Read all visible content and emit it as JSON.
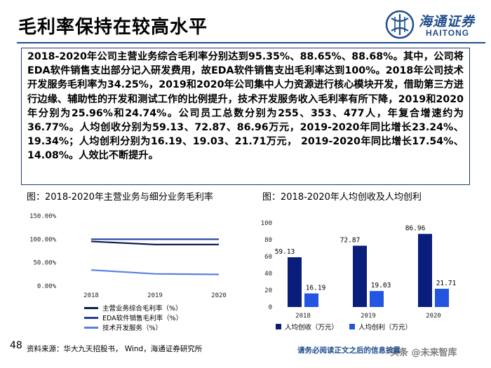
{
  "slide": {
    "title": "毛利率保持在较高水平",
    "page_number": "48"
  },
  "logo": {
    "cn_text": "海通证券",
    "en_text": "HAITONG",
    "accent_color": "#1f4e8c"
  },
  "summary": {
    "text": "2018-2020年公司主营业务综合毛利率分别达到95.35%、88.65%、88.68%。其中，公司将EDA软件销售支出部分记入研发费用，故EDA软件销售支出毛利率达到100%。2018年公司技术开发服务毛利率为34.25%，2019和2020年公司集中人力资源进行核心模块开发，借助第三方进行边缘、辅助性的开发和测试工作的比例提升，技术开发服务收入毛利率有所下降，2019和2020年分别为25.96%和24.74%。公司员工总数分别为255、353、477人，年复合增速约为36.77%。人均创收分别为59.13、72.87、86.96万元，2019-2020年同比增长23.24%、19.34%；人均创利分别为16.19、19.03、21.71万元， 2019-2020年同比增长17.54%、14.08%。人效比不断提升。"
  },
  "captions": {
    "left": "图：2018-2020年主营业务与细分业务毛利率",
    "right": "图：2018-2020年人均创收及人均创利"
  },
  "chart_data": [
    {
      "type": "line",
      "title": "",
      "x": [
        "2018",
        "2019",
        "2020"
      ],
      "y_ticks": [
        "150.00%",
        "100.00%",
        "50.00%",
        "0.00%"
      ],
      "ylim": [
        0,
        150
      ],
      "grid": false,
      "legend_position": "bottom",
      "series": [
        {
          "name": "主营业务综合毛利率（%）",
          "values": [
            95.35,
            88.65,
            88.68
          ],
          "color": "#0b1f4f"
        },
        {
          "name": "EDA软件销售毛利率（%）",
          "values": [
            100,
            100,
            100
          ],
          "color": "#1f3f9e"
        },
        {
          "name": "技术开发服务（%）",
          "values": [
            34.25,
            25.96,
            24.74
          ],
          "color": "#5b7fe0"
        }
      ]
    },
    {
      "type": "bar",
      "title": "",
      "categories": [
        "2018",
        "2019",
        "2020"
      ],
      "y_ticks": [
        "100",
        "80",
        "60",
        "40",
        "20",
        "0"
      ],
      "ylim": [
        0,
        100
      ],
      "grid": false,
      "legend_position": "bottom",
      "series": [
        {
          "name": "人均创收（万元）",
          "values": [
            59.13,
            72.87,
            86.96
          ],
          "labels": [
            "59.13",
            "72.87",
            "86.96"
          ],
          "color": "#0a1d7a"
        },
        {
          "name": "人均创利（万元）",
          "values": [
            16.19,
            19.03,
            21.71
          ],
          "labels": [
            "16.19",
            "19.03",
            "21.71"
          ],
          "color": "#2455e0"
        }
      ]
    }
  ],
  "footer": {
    "source": "资料来源：华大九天招股书， Wind，海通证券研究所",
    "disclaimer": "请务必阅读正文之后的信息披露",
    "watermark": "头条 @未来智库"
  }
}
